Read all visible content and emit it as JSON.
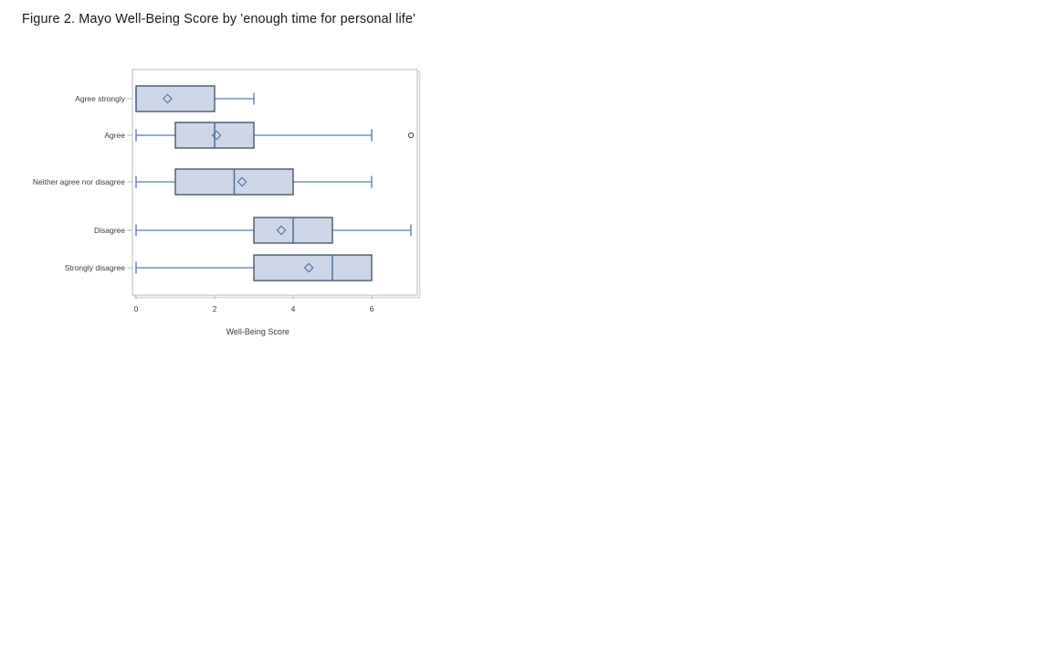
{
  "figure": {
    "caption_note": "boxplot figure embedded on a white document page"
  },
  "chart_data": {
    "type": "boxplot",
    "orientation": "horizontal",
    "title": "Figure 2. Mayo Well-Being Score by 'enough time for personal life'",
    "xlabel": "Well-Being Score",
    "ylabel": "",
    "xlim": [
      -0.15,
      7.2
    ],
    "xticks": [
      0,
      2,
      4,
      6
    ],
    "grid": false,
    "legend": false,
    "categories": [
      "Agree strongly",
      "Agree",
      "Neither agree nor disagree",
      "Disagree",
      "Strongly disagree"
    ],
    "boxes": [
      {
        "category": "Agree strongly",
        "whisker_low": 0,
        "q1": 0,
        "median": 0,
        "q3": 2,
        "whisker_high": 3,
        "mean": 0.8,
        "outliers": []
      },
      {
        "category": "Agree",
        "whisker_low": 0,
        "q1": 1,
        "median": 2,
        "q3": 3,
        "whisker_high": 6,
        "mean": 2.05,
        "outliers": [
          7
        ]
      },
      {
        "category": "Neither agree nor disagree",
        "whisker_low": 0,
        "q1": 1,
        "median": 2.5,
        "q3": 4,
        "whisker_high": 6,
        "mean": 2.7,
        "outliers": []
      },
      {
        "category": "Disagree",
        "whisker_low": 0,
        "q1": 3,
        "median": 4,
        "q3": 5,
        "whisker_high": 7,
        "mean": 3.7,
        "outliers": []
      },
      {
        "category": "Strongly disagree",
        "whisker_low": 0,
        "q1": 3,
        "median": 5,
        "q3": 6,
        "whisker_high": 6,
        "mean": 4.4,
        "outliers": []
      }
    ],
    "colors": {
      "box_fill": "#ccd6e6",
      "box_border": "#3e4b5e",
      "whisker": "#5b7cb0",
      "median": "#4f6d9e",
      "mean_marker": "#4f6d9e",
      "outlier": "#4d4d4d",
      "frame_border": "#b9b9b9",
      "frame_shadow": "#d9d9d9",
      "tick_text": "#3c3c3c",
      "title_text": "#1a1a1a"
    }
  }
}
